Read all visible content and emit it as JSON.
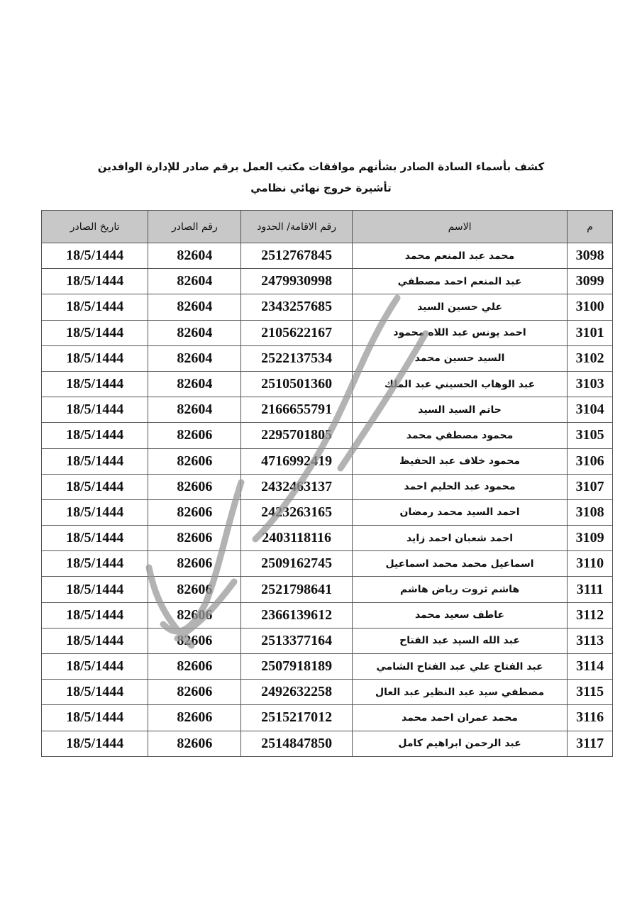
{
  "header": {
    "title_line1": "كشف بأسماء السادة الصادر بشأنهم موافقات مكتب العمل برقم صادر للإدارة الوافدين",
    "title_line2": "تأشيرة خروج نهائي نظامي"
  },
  "table": {
    "columns": [
      "م",
      "الاسم",
      "رقم الاقامة/ الحدود",
      "رقم الصادر",
      "تاريخ الصادر"
    ],
    "rows": [
      {
        "m": "3098",
        "name": "محمد عبد المنعم محمد",
        "iqama": "2512767845",
        "issue": "82604",
        "date": "18/5/1444"
      },
      {
        "m": "3099",
        "name": "عبد المنعم احمد مصطفي",
        "iqama": "2479930998",
        "issue": "82604",
        "date": "18/5/1444"
      },
      {
        "m": "3100",
        "name": "علي حسين السيد",
        "iqama": "2343257685",
        "issue": "82604",
        "date": "18/5/1444"
      },
      {
        "m": "3101",
        "name": "احمد يونس عبد اللاه محمود",
        "iqama": "2105622167",
        "issue": "82604",
        "date": "18/5/1444"
      },
      {
        "m": "3102",
        "name": "السيد حسين محمد",
        "iqama": "2522137534",
        "issue": "82604",
        "date": "18/5/1444"
      },
      {
        "m": "3103",
        "name": "عبد الوهاب الحسيني عبد الملك",
        "iqama": "2510501360",
        "issue": "82604",
        "date": "18/5/1444"
      },
      {
        "m": "3104",
        "name": "حاتم السيد السيد",
        "iqama": "2166655791",
        "issue": "82604",
        "date": "18/5/1444"
      },
      {
        "m": "3105",
        "name": "محمود مصطفي محمد",
        "iqama": "2295701805",
        "issue": "82606",
        "date": "18/5/1444"
      },
      {
        "m": "3106",
        "name": "محمود خلاف عبد الحفيظ",
        "iqama": "4716992419",
        "issue": "82606",
        "date": "18/5/1444"
      },
      {
        "m": "3107",
        "name": "محمود عبد الحليم احمد",
        "iqama": "2432463137",
        "issue": "82606",
        "date": "18/5/1444"
      },
      {
        "m": "3108",
        "name": "احمد السيد محمد رمضان",
        "iqama": "2423263165",
        "issue": "82606",
        "date": "18/5/1444"
      },
      {
        "m": "3109",
        "name": "احمد شعبان احمد زايد",
        "iqama": "2403118116",
        "issue": "82606",
        "date": "18/5/1444"
      },
      {
        "m": "3110",
        "name": "اسماعيل محمد محمد اسماعيل",
        "iqama": "2509162745",
        "issue": "82606",
        "date": "18/5/1444"
      },
      {
        "m": "3111",
        "name": "هاشم ثروت رياض هاشم",
        "iqama": "2521798641",
        "issue": "82606",
        "date": "18/5/1444"
      },
      {
        "m": "3112",
        "name": "عاطف سعيد محمد",
        "iqama": "2366139612",
        "issue": "82606",
        "date": "18/5/1444"
      },
      {
        "m": "3113",
        "name": "عبد الله السيد عبد الفتاح",
        "iqama": "2513377164",
        "issue": "82606",
        "date": "18/5/1444"
      },
      {
        "m": "3114",
        "name": "عبد الفتاح علي عبد الفتاح الشامي",
        "iqama": "2507918189",
        "issue": "82606",
        "date": "18/5/1444"
      },
      {
        "m": "3115",
        "name": "مصطفي سيد عبد النظير عبد العال",
        "iqama": "2492632258",
        "issue": "82606",
        "date": "18/5/1444"
      },
      {
        "m": "3116",
        "name": "محمد عمران احمد محمد",
        "iqama": "2515217012",
        "issue": "82606",
        "date": "18/5/1444"
      },
      {
        "m": "3117",
        "name": "عبد الرحمن ابراهيم كامل",
        "iqama": "2514847850",
        "issue": "82606",
        "date": "18/5/1444"
      }
    ]
  },
  "colors": {
    "header_bg": "#c8c8c8",
    "border": "#555555",
    "watermark": "#9a9a9a"
  }
}
